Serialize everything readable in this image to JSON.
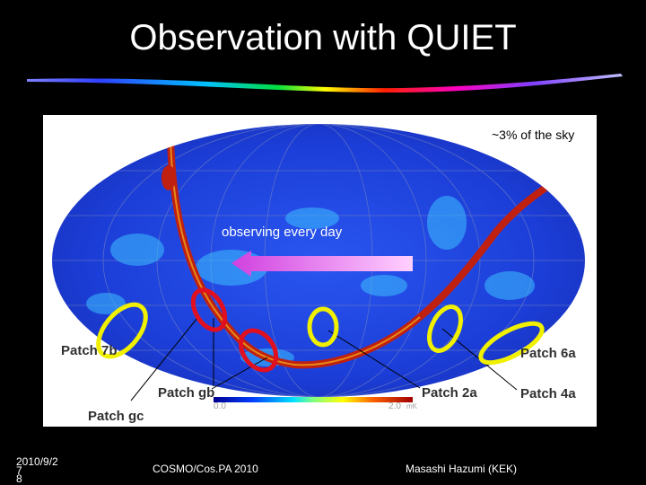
{
  "slide": {
    "title": "Observation with QUIET",
    "sky_fraction": "~3% of the sky",
    "observing_label": "observing every day",
    "patches": [
      "Patch 7b",
      "Patch gb",
      "Patch gc",
      "Patch 2a",
      "Patch 6a",
      "Patch 4a"
    ],
    "colorbar": {
      "min": "0.0",
      "max": "2.0",
      "unit": "mK"
    }
  },
  "footer": {
    "date": "2010/9/2",
    "page_a": "7",
    "page_b": "8",
    "conference": "COSMO/Cos.PA 2010",
    "author": "Masashi Hazumi (KEK)"
  },
  "colors": {
    "background": "#000000",
    "map_blue": "#1f40d8",
    "galactic_plane": "#b01810",
    "patch_red": "#e01020",
    "patch_yellow": "#f0f000",
    "arrow": "#e060d8"
  }
}
